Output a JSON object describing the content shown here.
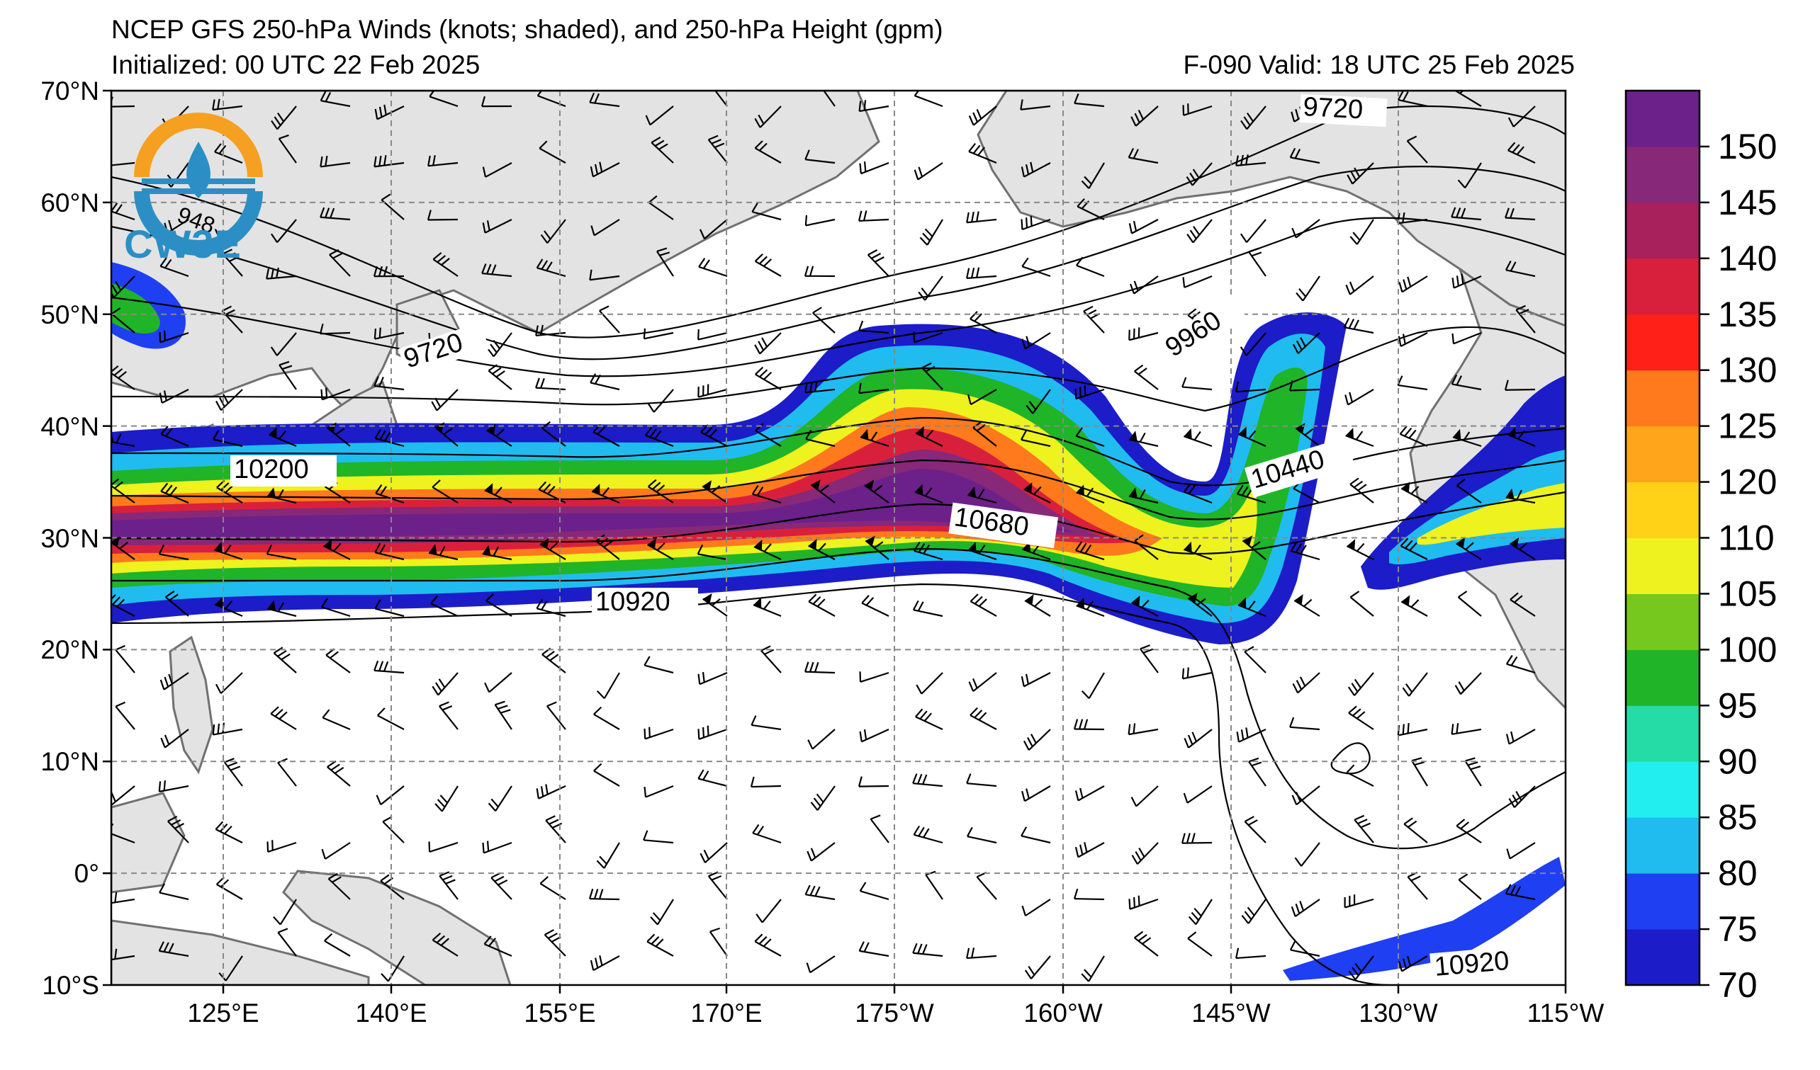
{
  "header": {
    "title": "NCEP GFS 250-hPa Winds (knots; shaded), and 250-hPa Height (gpm)",
    "initialized": "Initialized: 00 UTC 22 Feb 2025",
    "valid": "F-090  Valid: 18 UTC 25 Feb 2025"
  },
  "logo": {
    "text": "CW3E"
  },
  "map": {
    "lon_labels": [
      "125°E",
      "140°E",
      "155°E",
      "170°E",
      "175°W",
      "160°W",
      "145°W",
      "130°W",
      "115°W"
    ],
    "lat_labels": [
      "70°N",
      "60°N",
      "50°N",
      "40°N",
      "30°N",
      "20°N",
      "10°N",
      "0°",
      "10°S"
    ],
    "contour_labels": [
      "9720",
      "9720",
      "9960",
      "10200",
      "10440",
      "10680",
      "10920",
      "10920",
      "948"
    ],
    "colors": {
      "land": "#e3e3e3",
      "coast": "#707070",
      "grid": "#888888"
    }
  },
  "colorbar": {
    "ticks": [
      "150",
      "145",
      "140",
      "135",
      "130",
      "125",
      "120",
      "110",
      "105",
      "100",
      "95",
      "90",
      "85",
      "80",
      "75",
      "70"
    ],
    "colors": [
      "#1c1cc8",
      "#1f3ff2",
      "#20bcf0",
      "#22eef0",
      "#26dca6",
      "#20b428",
      "#77c81e",
      "#eef21e",
      "#ffd218",
      "#ffa51c",
      "#ff7a1c",
      "#ff2018",
      "#d8203c",
      "#a8205c",
      "#882878",
      "#6c208a"
    ]
  }
}
